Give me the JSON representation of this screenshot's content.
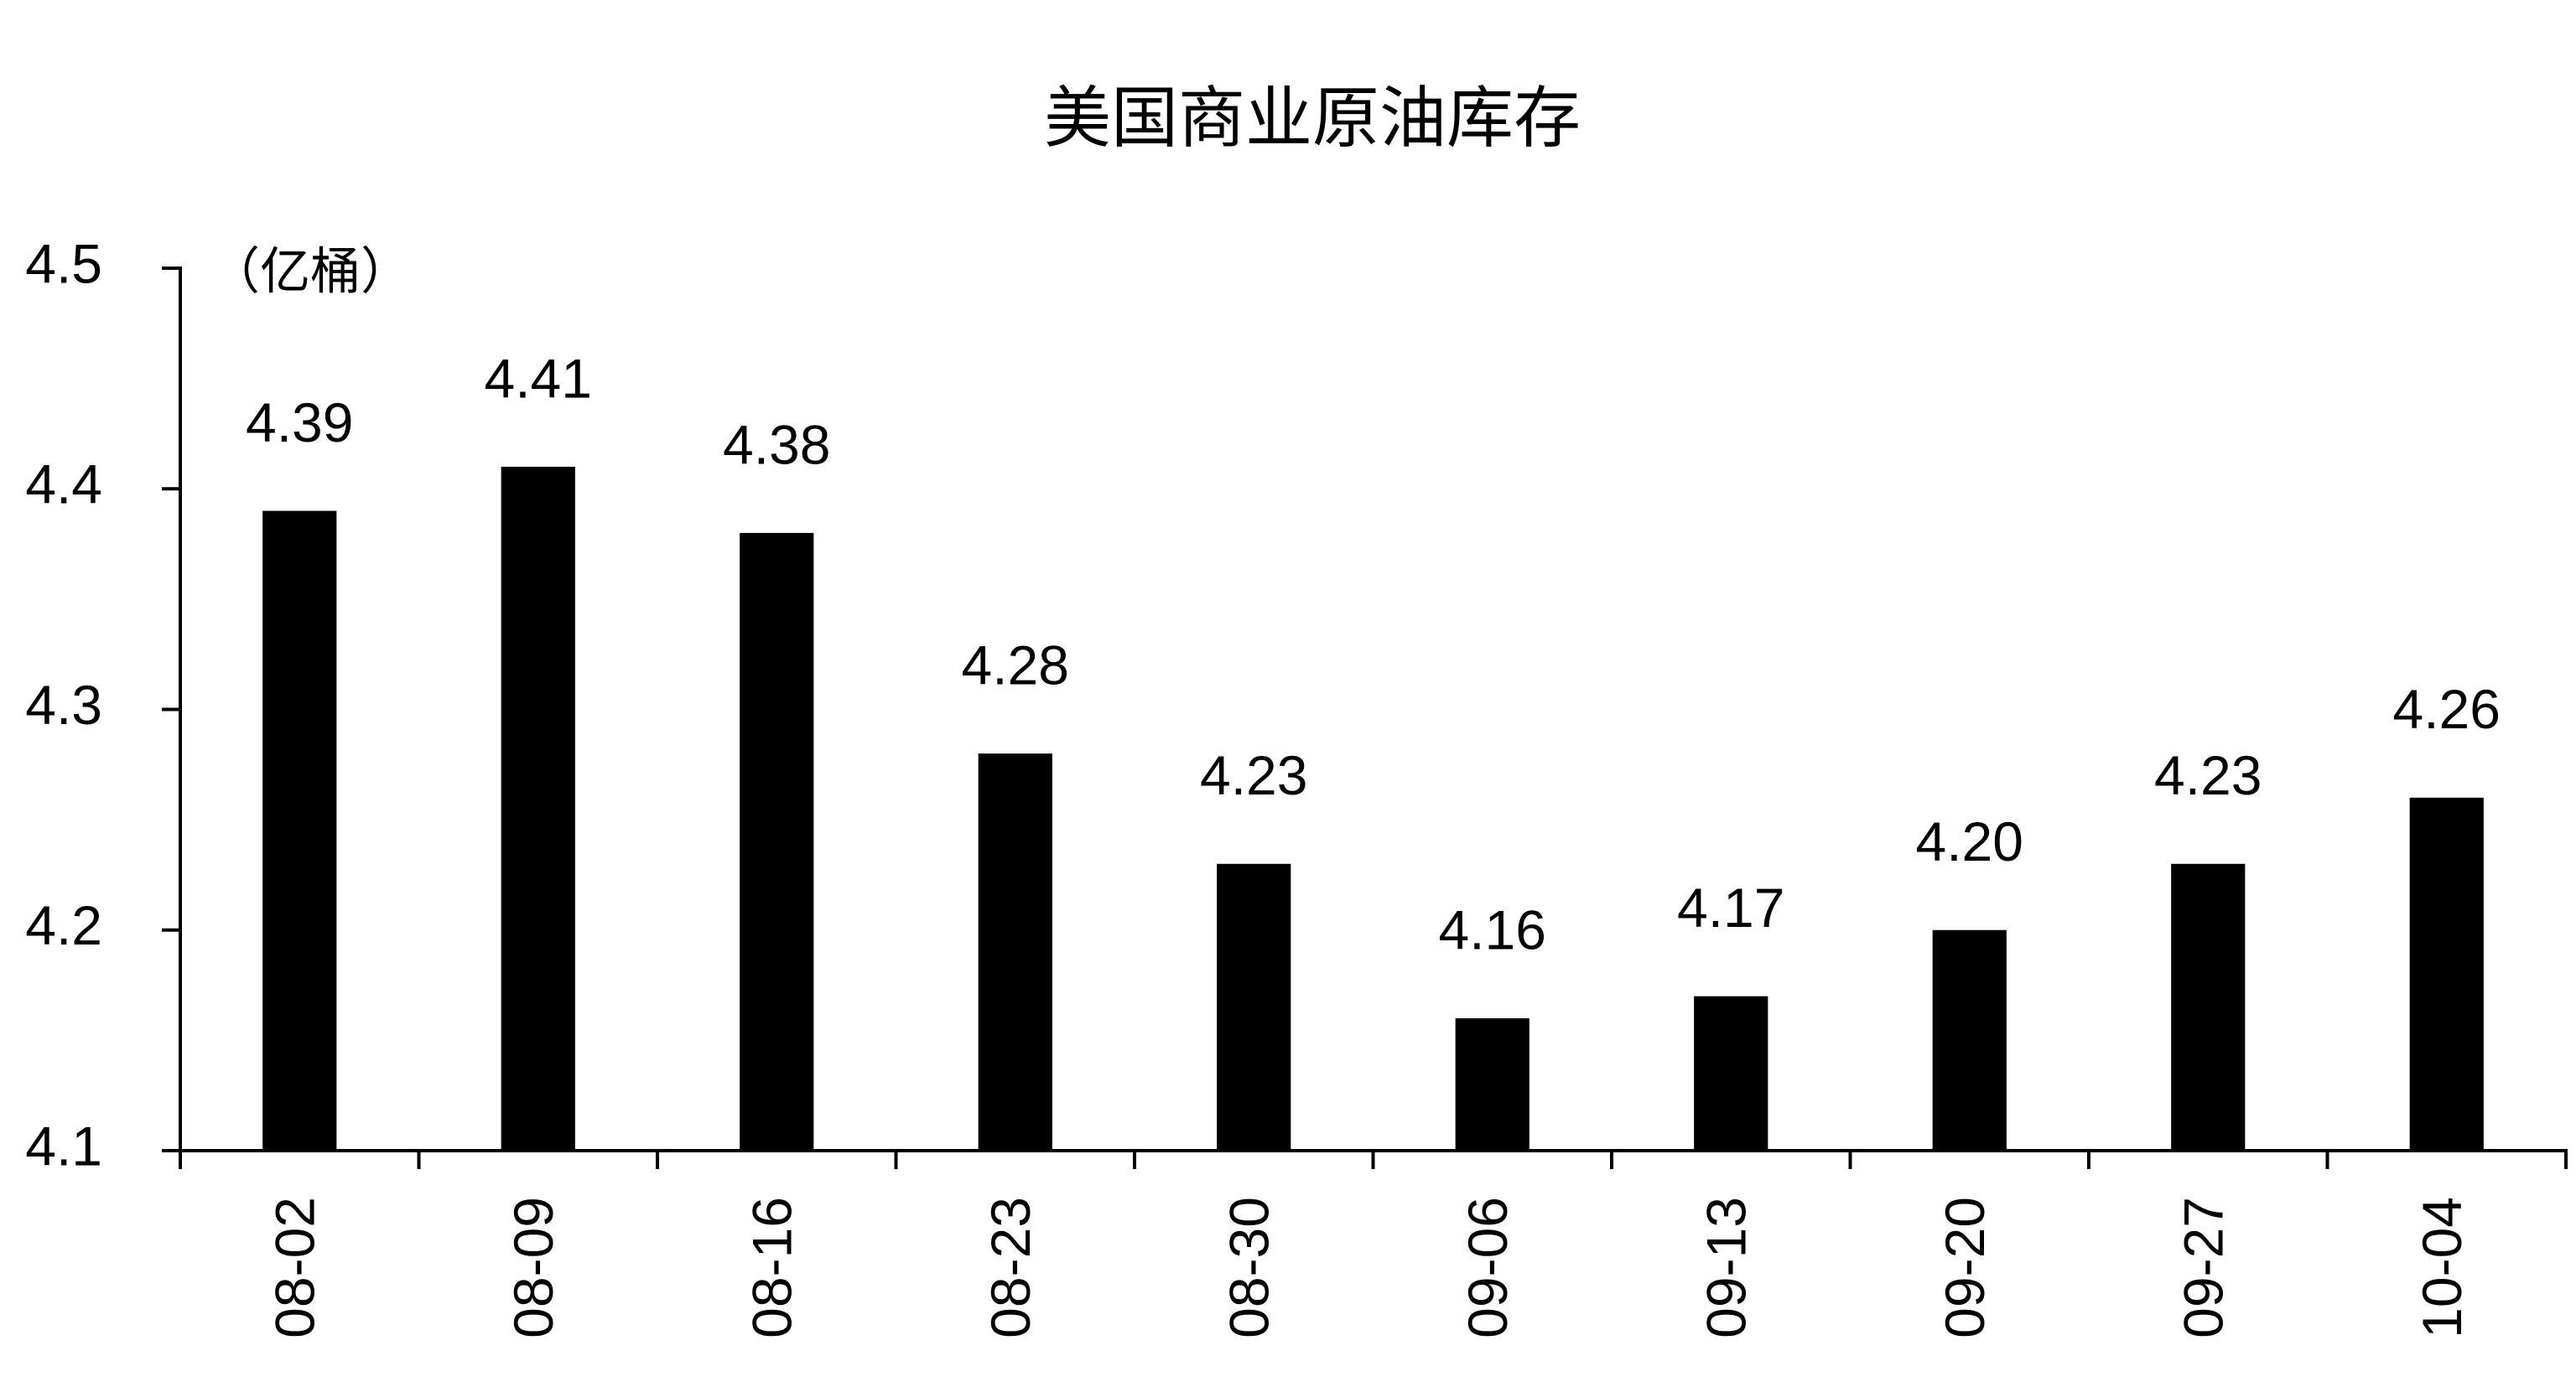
{
  "chart_data": {
    "type": "bar",
    "title": "美国商业原油库存",
    "y_label": "（亿桶）",
    "categories": [
      "08-02",
      "08-09",
      "08-16",
      "08-23",
      "08-30",
      "09-06",
      "09-13",
      "09-20",
      "09-27",
      "10-04"
    ],
    "values": [
      4.39,
      4.41,
      4.38,
      4.28,
      4.23,
      4.16,
      4.17,
      4.2,
      4.23,
      4.26
    ],
    "value_labels": [
      "4.39",
      "4.41",
      "4.38",
      "4.28",
      "4.23",
      "4.16",
      "4.17",
      "4.20",
      "4.23",
      "4.26"
    ],
    "color": "#000000",
    "ylim": [
      4.1,
      4.5
    ],
    "yticks": [
      4.1,
      4.2,
      4.3,
      4.4,
      4.5
    ],
    "grid": false
  }
}
